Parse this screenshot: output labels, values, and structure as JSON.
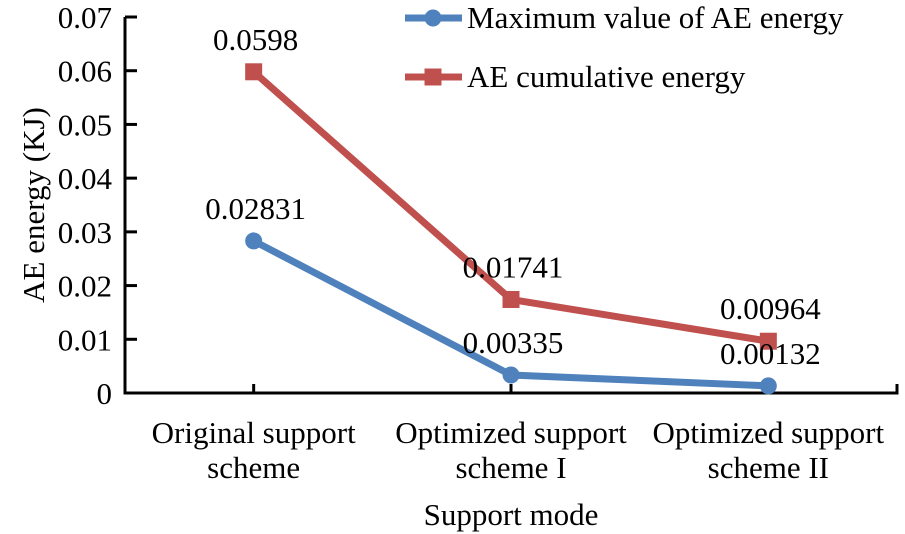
{
  "chart_data": {
    "type": "line",
    "title": "",
    "xlabel": "Support mode",
    "ylabel": "AE energy (KJ)",
    "categories": [
      "Original support scheme",
      "Optimized support scheme I",
      "Optimized support scheme II"
    ],
    "series": [
      {
        "name": "Maximum value of AE energy",
        "values": [
          0.02831,
          0.00335,
          0.00132
        ],
        "labels": [
          "0.02831",
          "0.00335",
          "0.00132"
        ],
        "color": "#4F81BD",
        "marker": "circle"
      },
      {
        "name": "AE cumulative energy",
        "values": [
          0.0598,
          0.01741,
          0.00964
        ],
        "labels": [
          "0.0598",
          "0.01741",
          "0.00964"
        ],
        "color": "#C0504D",
        "marker": "square"
      }
    ],
    "ylim": [
      0,
      0.07
    ],
    "yticks": [
      0,
      0.01,
      0.02,
      0.03,
      0.04,
      0.05,
      0.06,
      0.07
    ],
    "ytick_labels": [
      "0",
      "0.01",
      "0.02",
      "0.03",
      "0.04",
      "0.05",
      "0.06",
      "0.07"
    ],
    "grid": false,
    "legend_position": "top-right",
    "colors": {
      "axis": "#000000",
      "text": "#000000",
      "background": "#ffffff"
    }
  }
}
